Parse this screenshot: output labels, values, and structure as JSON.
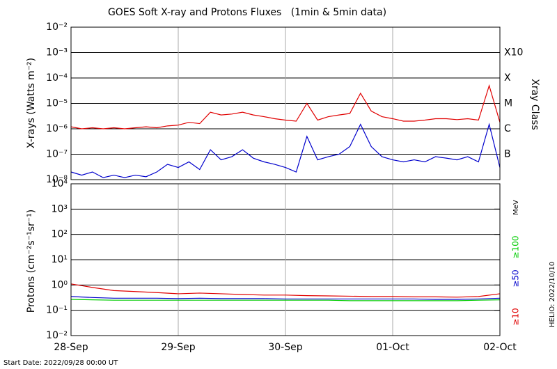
{
  "title": "GOES Soft X-ray and Protons Fluxes   (1min & 5min data)",
  "start_date": "Start Date: 2022/09/28 00:00 UT",
  "credit": "HELIO: 2022/10/10",
  "chart_data": [
    {
      "type": "line",
      "log_scale": true,
      "y_label": "X-rays (Watts m⁻²)",
      "right_label": "Xray Class",
      "class_labels": [
        {
          "value": 0.001,
          "label": "X10"
        },
        {
          "value": 0.0001,
          "label": "X"
        },
        {
          "value": 1e-05,
          "label": "M"
        },
        {
          "value": 1e-06,
          "label": "C"
        },
        {
          "value": 1e-07,
          "label": "B"
        }
      ],
      "xlim": [
        0,
        4
      ],
      "xticks": [
        0,
        1,
        2,
        3,
        4
      ],
      "ylim": [
        1e-08,
        0.01
      ],
      "yticks": [
        {
          "value": 0.01,
          "label": "10⁻²"
        },
        {
          "value": 0.001,
          "label": "10⁻³"
        },
        {
          "value": 0.0001,
          "label": "10⁻⁴"
        },
        {
          "value": 1e-05,
          "label": "10⁻⁵"
        },
        {
          "value": 1e-06,
          "label": "10⁻⁶"
        },
        {
          "value": 1e-07,
          "label": "10⁻⁷"
        },
        {
          "value": 1e-08,
          "label": "10⁻⁸"
        }
      ],
      "x": [
        0,
        0.1,
        0.2,
        0.3,
        0.4,
        0.5,
        0.6,
        0.7,
        0.8,
        0.9,
        1,
        1.1,
        1.2,
        1.3,
        1.4,
        1.5,
        1.6,
        1.7,
        1.8,
        1.9,
        2,
        2.1,
        2.2,
        2.3,
        2.4,
        2.5,
        2.6,
        2.7,
        2.8,
        2.9,
        3,
        3.1,
        3.2,
        3.3,
        3.4,
        3.5,
        3.6,
        3.7,
        3.8,
        3.9,
        4
      ],
      "series": [
        {
          "color": "#e00000",
          "values": [
            1.2e-06,
            1e-06,
            1.1e-06,
            1e-06,
            1.1e-06,
            1e-06,
            1.1e-06,
            1.2e-06,
            1.1e-06,
            1.3e-06,
            1.4e-06,
            1.8e-06,
            1.6e-06,
            4.5e-06,
            3.5e-06,
            3.8e-06,
            4.5e-06,
            3.5e-06,
            3e-06,
            2.5e-06,
            2.2e-06,
            2e-06,
            1e-05,
            2.2e-06,
            3e-06,
            3.5e-06,
            4e-06,
            2.5e-05,
            5e-06,
            3e-06,
            2.5e-06,
            2e-06,
            2e-06,
            2.2e-06,
            2.5e-06,
            2.5e-06,
            2.3e-06,
            2.5e-06,
            2.2e-06,
            5e-05,
            1.8e-06
          ]
        },
        {
          "color": "#0000cc",
          "values": [
            2e-08,
            1.5e-08,
            2e-08,
            1.2e-08,
            1.5e-08,
            1.2e-08,
            1.5e-08,
            1.3e-08,
            2e-08,
            4e-08,
            3e-08,
            5e-08,
            2.5e-08,
            1.5e-07,
            6e-08,
            8e-08,
            1.5e-07,
            7e-08,
            5e-08,
            4e-08,
            3e-08,
            2e-08,
            5e-07,
            6e-08,
            8e-08,
            1e-07,
            2e-07,
            1.5e-06,
            2e-07,
            8e-08,
            6e-08,
            5e-08,
            6e-08,
            5e-08,
            8e-08,
            7e-08,
            6e-08,
            8e-08,
            5e-08,
            1.5e-06,
            3e-08
          ]
        }
      ]
    },
    {
      "type": "line",
      "log_scale": true,
      "y_label": "Protons (cm⁻²s⁻¹sr⁻¹)",
      "unit_label": "MeV",
      "xlim": [
        0,
        4
      ],
      "xticks": [
        {
          "value": 0,
          "label": "28-Sep"
        },
        {
          "value": 1,
          "label": "29-Sep"
        },
        {
          "value": 2,
          "label": "30-Sep"
        },
        {
          "value": 3,
          "label": "01-Oct"
        },
        {
          "value": 4,
          "label": "02-Oct"
        }
      ],
      "ylim": [
        0.01,
        10000
      ],
      "yticks": [
        {
          "value": 10000,
          "label": "10⁴"
        },
        {
          "value": 1000,
          "label": "10³"
        },
        {
          "value": 100,
          "label": "10²"
        },
        {
          "value": 10,
          "label": "10¹"
        },
        {
          "value": 1,
          "label": "10⁰"
        },
        {
          "value": 0.1,
          "label": "10⁻¹"
        },
        {
          "value": 0.01,
          "label": "10⁻²"
        }
      ],
      "dashed_line": 10,
      "x": [
        0,
        0.2,
        0.4,
        0.6,
        0.8,
        1,
        1.2,
        1.4,
        1.6,
        1.8,
        2,
        2.2,
        2.4,
        2.6,
        2.8,
        3,
        3.2,
        3.4,
        3.6,
        3.8,
        4
      ],
      "series": [
        {
          "name": "≥10",
          "color": "#e00000",
          "values": [
            1.1,
            0.8,
            0.6,
            0.55,
            0.5,
            0.45,
            0.48,
            0.45,
            0.42,
            0.4,
            0.4,
            0.38,
            0.37,
            0.36,
            0.35,
            0.35,
            0.34,
            0.34,
            0.33,
            0.35,
            0.45
          ]
        },
        {
          "name": "≥50",
          "color": "#0000cc",
          "values": [
            0.35,
            0.32,
            0.3,
            0.3,
            0.3,
            0.29,
            0.3,
            0.29,
            0.29,
            0.29,
            0.28,
            0.28,
            0.28,
            0.28,
            0.28,
            0.28,
            0.28,
            0.27,
            0.27,
            0.28,
            0.3
          ]
        },
        {
          "name": "≥100",
          "color": "#00cc00",
          "values": [
            0.27,
            0.26,
            0.25,
            0.25,
            0.25,
            0.25,
            0.25,
            0.25,
            0.25,
            0.25,
            0.25,
            0.25,
            0.25,
            0.24,
            0.24,
            0.24,
            0.24,
            0.24,
            0.24,
            0.25,
            0.26
          ]
        }
      ]
    }
  ]
}
